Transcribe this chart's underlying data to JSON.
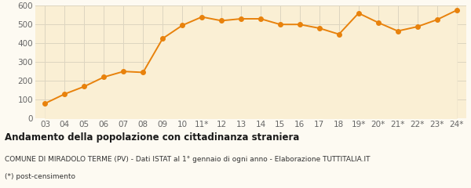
{
  "x_labels": [
    "03",
    "04",
    "05",
    "06",
    "07",
    "08",
    "09",
    "10",
    "11*",
    "12",
    "13",
    "14",
    "15",
    "16",
    "17",
    "18",
    "19*",
    "20*",
    "21*",
    "22*",
    "23*",
    "24*"
  ],
  "values": [
    80,
    130,
    170,
    220,
    250,
    245,
    425,
    495,
    540,
    520,
    530,
    530,
    500,
    500,
    480,
    448,
    560,
    510,
    465,
    488,
    525,
    575
  ],
  "line_color": "#E8820C",
  "fill_color": "#FAEFD4",
  "marker_color": "#E8820C",
  "bg_color": "#FDFAF2",
  "grid_color": "#DDD5C0",
  "title": "Andamento della popolazione con cittadinanza straniera",
  "subtitle": "COMUNE DI MIRADOLO TERME (PV) - Dati ISTAT al 1° gennaio di ogni anno - Elaborazione TUTTITALIA.IT",
  "footnote": "(*) post-censimento",
  "ylim": [
    0,
    600
  ],
  "yticks": [
    0,
    100,
    200,
    300,
    400,
    500,
    600
  ],
  "title_fontsize": 8.5,
  "subtitle_fontsize": 6.5,
  "footnote_fontsize": 6.5,
  "tick_fontsize": 7.5
}
